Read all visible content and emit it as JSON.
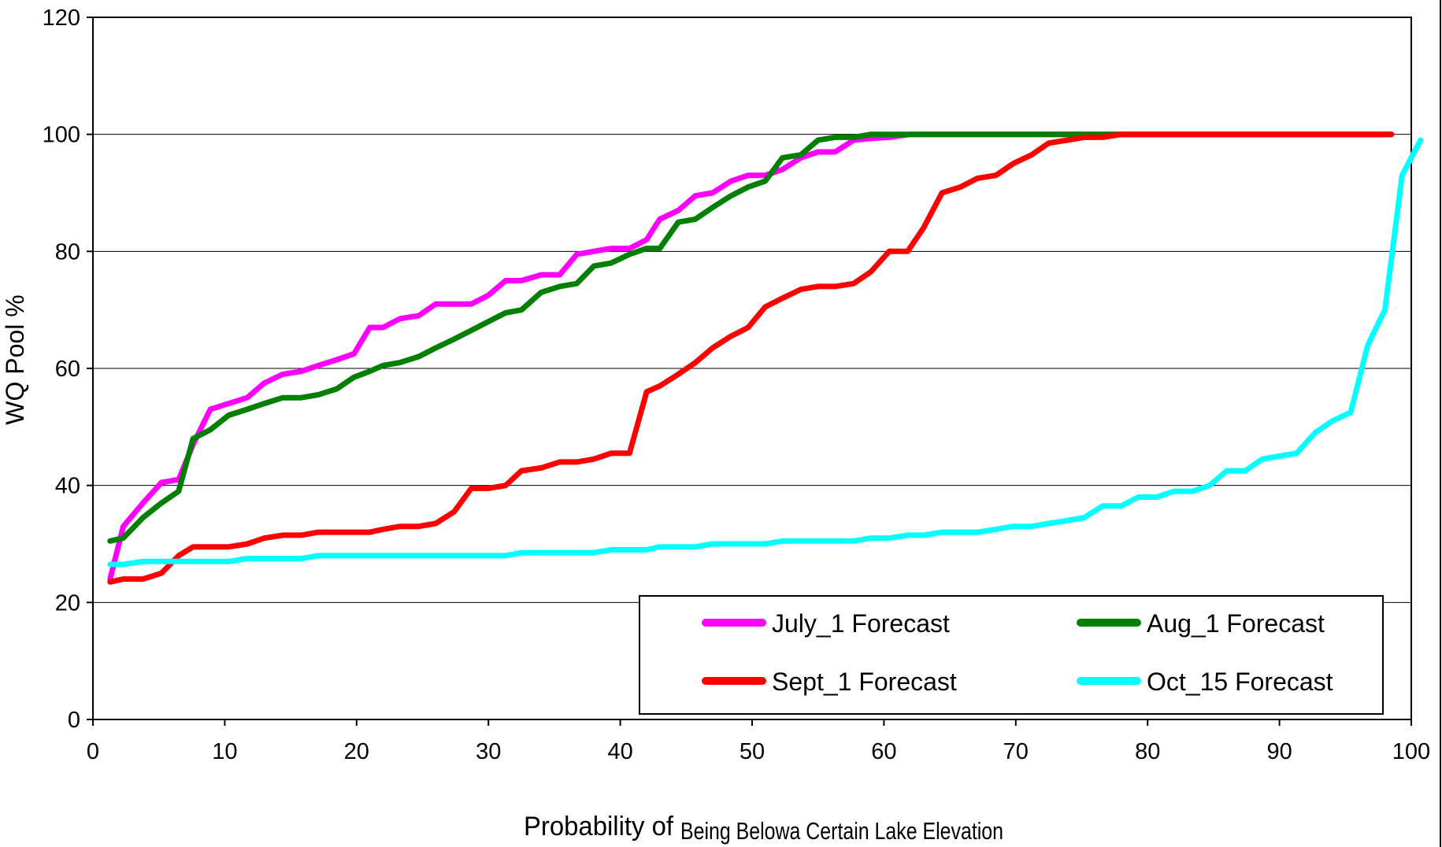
{
  "chart_data": {
    "type": "line",
    "title": "",
    "ylabel": "WQ Pool %",
    "xlabel_part1": "Probability of",
    "xlabel_part2": "Being Belowa Certain Lake Elevation",
    "xlim": [
      0,
      100
    ],
    "ylim": [
      0,
      120
    ],
    "xticks": [
      0,
      10,
      20,
      30,
      40,
      50,
      60,
      70,
      80,
      90,
      100
    ],
    "yticks": [
      0,
      20,
      40,
      60,
      80,
      100,
      120
    ],
    "grid": "horizontal",
    "legend_position": "bottom-right",
    "series": [
      {
        "name": "July_1 Forecast",
        "color": "#FF00FF",
        "points": [
          [
            1.3,
            24
          ],
          [
            2.3,
            33
          ],
          [
            3.8,
            37
          ],
          [
            5.2,
            40.5
          ],
          [
            6.5,
            41
          ],
          [
            7.6,
            47
          ],
          [
            8.9,
            53
          ],
          [
            10.3,
            54
          ],
          [
            11.7,
            55
          ],
          [
            13,
            57.5
          ],
          [
            14.4,
            59
          ],
          [
            15.8,
            59.5
          ],
          [
            17.1,
            60.5
          ],
          [
            18.5,
            61.5
          ],
          [
            19.8,
            62.5
          ],
          [
            21,
            67
          ],
          [
            22,
            67
          ],
          [
            23.3,
            68.5
          ],
          [
            24.7,
            69
          ],
          [
            26,
            71
          ],
          [
            27.4,
            71
          ],
          [
            28.7,
            71
          ],
          [
            30,
            72.5
          ],
          [
            31.3,
            75
          ],
          [
            32.5,
            75
          ],
          [
            34,
            76
          ],
          [
            35.4,
            76
          ],
          [
            36.7,
            79.5
          ],
          [
            38,
            80
          ],
          [
            39.3,
            80.5
          ],
          [
            40.7,
            80.5
          ],
          [
            42,
            82
          ],
          [
            43,
            85.5
          ],
          [
            44.4,
            87
          ],
          [
            45.7,
            89.5
          ],
          [
            47,
            90
          ],
          [
            48.4,
            92
          ],
          [
            49.7,
            93
          ],
          [
            51,
            93
          ],
          [
            52.3,
            94
          ],
          [
            53.7,
            96
          ],
          [
            55,
            97
          ],
          [
            56.3,
            97
          ],
          [
            57.7,
            99
          ],
          [
            59,
            99.3
          ],
          [
            60.4,
            99.5
          ],
          [
            62,
            100
          ],
          [
            64,
            100
          ],
          [
            66,
            100
          ],
          [
            70,
            100
          ],
          [
            80,
            100
          ],
          [
            90,
            100
          ],
          [
            98.5,
            100
          ]
        ]
      },
      {
        "name": "Aug_1 Forecast",
        "color": "#007F00",
        "points": [
          [
            1.3,
            30.5
          ],
          [
            2.3,
            31
          ],
          [
            3.8,
            34.5
          ],
          [
            5.2,
            37
          ],
          [
            6.5,
            39
          ],
          [
            7.6,
            48
          ],
          [
            8.9,
            49.5
          ],
          [
            10.3,
            52
          ],
          [
            11.7,
            53
          ],
          [
            13,
            54
          ],
          [
            14.4,
            55
          ],
          [
            15.8,
            55
          ],
          [
            17.1,
            55.5
          ],
          [
            18.5,
            56.5
          ],
          [
            19.8,
            58.5
          ],
          [
            21,
            59.5
          ],
          [
            22,
            60.5
          ],
          [
            23.3,
            61
          ],
          [
            24.7,
            62
          ],
          [
            26,
            63.5
          ],
          [
            27.4,
            65
          ],
          [
            28.7,
            66.5
          ],
          [
            30,
            68
          ],
          [
            31.3,
            69.5
          ],
          [
            32.5,
            70
          ],
          [
            34,
            73
          ],
          [
            35.4,
            74
          ],
          [
            36.7,
            74.5
          ],
          [
            38,
            77.5
          ],
          [
            39.3,
            78
          ],
          [
            40.7,
            79.5
          ],
          [
            42,
            80.5
          ],
          [
            43,
            80.5
          ],
          [
            44.4,
            85
          ],
          [
            45.7,
            85.5
          ],
          [
            47,
            87.5
          ],
          [
            48.4,
            89.5
          ],
          [
            49.7,
            91
          ],
          [
            51,
            92
          ],
          [
            52.3,
            96
          ],
          [
            53.7,
            96.5
          ],
          [
            55,
            99
          ],
          [
            56.3,
            99.5
          ],
          [
            57.7,
            99.5
          ],
          [
            59,
            100
          ],
          [
            60.4,
            100
          ],
          [
            62,
            100
          ],
          [
            64,
            100
          ],
          [
            66,
            100
          ],
          [
            70,
            100
          ],
          [
            80,
            100
          ],
          [
            90,
            100
          ],
          [
            98.5,
            100
          ]
        ]
      },
      {
        "name": "Sept_1 Forecast",
        "color": "#FF0000",
        "points": [
          [
            1.3,
            23.5
          ],
          [
            2.3,
            24
          ],
          [
            3.8,
            24
          ],
          [
            5.2,
            25
          ],
          [
            6.5,
            28
          ],
          [
            7.6,
            29.5
          ],
          [
            8.9,
            29.5
          ],
          [
            10.3,
            29.5
          ],
          [
            11.7,
            30
          ],
          [
            13,
            31
          ],
          [
            14.4,
            31.5
          ],
          [
            15.8,
            31.5
          ],
          [
            17.1,
            32
          ],
          [
            18.5,
            32
          ],
          [
            19.8,
            32
          ],
          [
            21,
            32
          ],
          [
            22,
            32.5
          ],
          [
            23.3,
            33
          ],
          [
            24.7,
            33
          ],
          [
            26,
            33.5
          ],
          [
            27.4,
            35.5
          ],
          [
            28.7,
            39.5
          ],
          [
            30,
            39.5
          ],
          [
            31.3,
            40
          ],
          [
            32.5,
            42.5
          ],
          [
            34,
            43
          ],
          [
            35.4,
            44
          ],
          [
            36.7,
            44
          ],
          [
            38,
            44.5
          ],
          [
            39.3,
            45.5
          ],
          [
            40.7,
            45.5
          ],
          [
            42,
            56
          ],
          [
            43,
            57
          ],
          [
            44.4,
            59
          ],
          [
            45.7,
            61
          ],
          [
            47,
            63.5
          ],
          [
            48.4,
            65.5
          ],
          [
            49.7,
            67
          ],
          [
            51,
            70.5
          ],
          [
            52.3,
            72
          ],
          [
            53.7,
            73.5
          ],
          [
            55,
            74
          ],
          [
            56.3,
            74
          ],
          [
            57.7,
            74.5
          ],
          [
            59,
            76.5
          ],
          [
            60.4,
            80
          ],
          [
            61.8,
            80
          ],
          [
            63,
            84
          ],
          [
            64.4,
            90
          ],
          [
            65.8,
            91
          ],
          [
            67.1,
            92.5
          ],
          [
            68.5,
            93
          ],
          [
            69.8,
            95
          ],
          [
            71.2,
            96.5
          ],
          [
            72.5,
            98.5
          ],
          [
            73.9,
            99
          ],
          [
            75.2,
            99.5
          ],
          [
            76.6,
            99.5
          ],
          [
            78,
            100
          ],
          [
            79.3,
            100
          ],
          [
            80.7,
            100
          ],
          [
            85,
            100
          ],
          [
            90,
            100
          ],
          [
            98.5,
            100
          ]
        ]
      },
      {
        "name": "Oct_15 Forecast",
        "color": "#00FFFF",
        "points": [
          [
            1.3,
            26.5
          ],
          [
            2.3,
            26.5
          ],
          [
            3.8,
            27
          ],
          [
            5.2,
            27
          ],
          [
            6.5,
            27
          ],
          [
            7.6,
            27
          ],
          [
            10.3,
            27
          ],
          [
            11.7,
            27.5
          ],
          [
            15.8,
            27.5
          ],
          [
            17.1,
            28
          ],
          [
            20,
            28
          ],
          [
            25,
            28
          ],
          [
            30,
            28
          ],
          [
            31.3,
            28
          ],
          [
            32.5,
            28.5
          ],
          [
            35.4,
            28.5
          ],
          [
            38,
            28.5
          ],
          [
            39.3,
            29
          ],
          [
            42,
            29
          ],
          [
            43,
            29.5
          ],
          [
            45.7,
            29.5
          ],
          [
            47,
            30
          ],
          [
            50,
            30
          ],
          [
            51,
            30
          ],
          [
            52.3,
            30.5
          ],
          [
            55,
            30.5
          ],
          [
            57.7,
            30.5
          ],
          [
            59,
            31
          ],
          [
            60.4,
            31
          ],
          [
            61.8,
            31.5
          ],
          [
            63,
            31.5
          ],
          [
            64.4,
            32
          ],
          [
            67.1,
            32
          ],
          [
            68.5,
            32.5
          ],
          [
            69.8,
            33
          ],
          [
            71.2,
            33
          ],
          [
            72.5,
            33.5
          ],
          [
            73.9,
            34
          ],
          [
            75.2,
            34.5
          ],
          [
            76.6,
            36.5
          ],
          [
            78,
            36.5
          ],
          [
            79.3,
            38
          ],
          [
            80.7,
            38
          ],
          [
            82,
            39
          ],
          [
            83.4,
            39
          ],
          [
            84.7,
            40
          ],
          [
            86,
            42.5
          ],
          [
            87.4,
            42.5
          ],
          [
            88.7,
            44.5
          ],
          [
            90,
            45
          ],
          [
            91.3,
            45.5
          ],
          [
            92.7,
            49
          ],
          [
            94,
            51
          ],
          [
            95.4,
            52.5
          ],
          [
            96.7,
            64
          ],
          [
            98,
            70
          ],
          [
            99.3,
            93
          ],
          [
            100.7,
            99
          ]
        ]
      }
    ]
  }
}
